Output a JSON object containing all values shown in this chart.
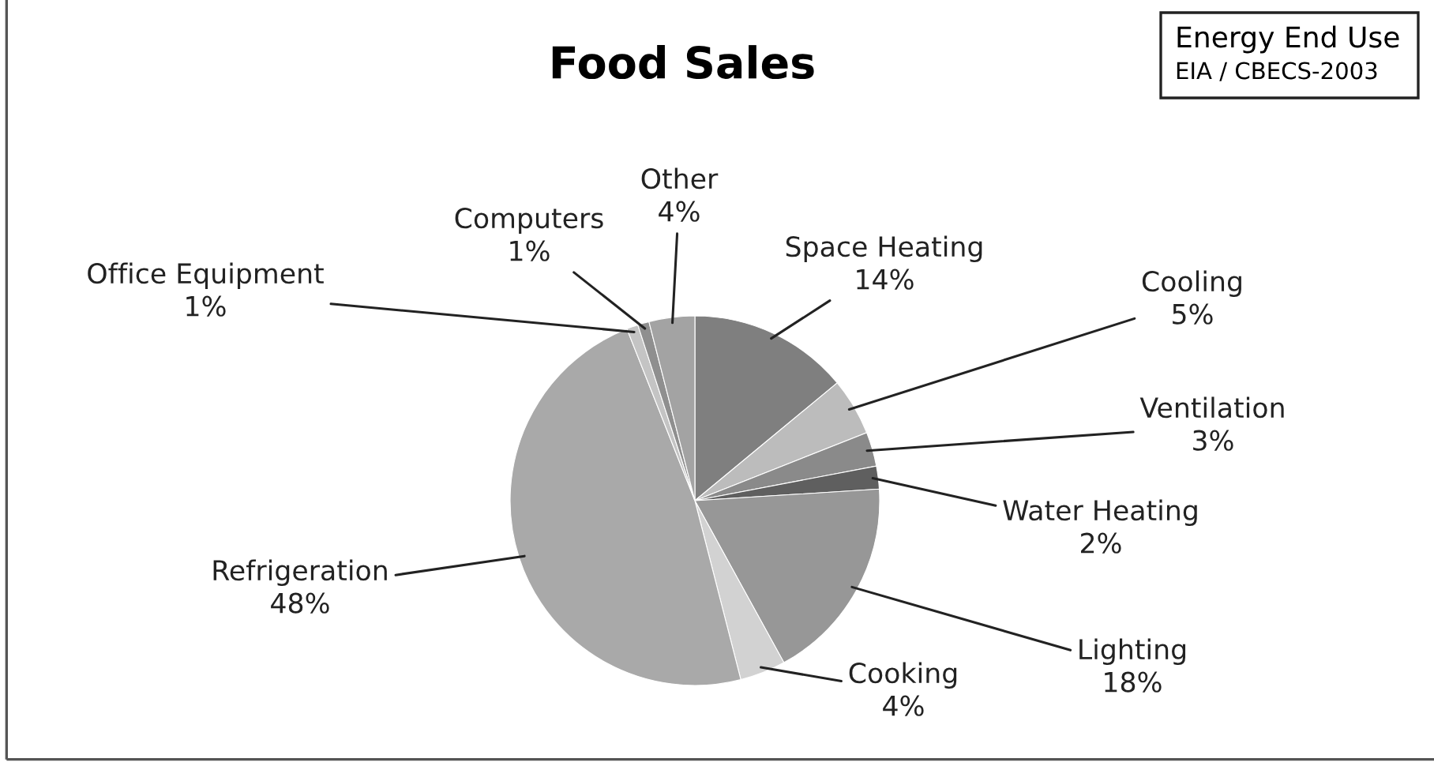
{
  "chart_data": {
    "type": "pie",
    "title": "Food Sales",
    "categories": [
      "Space Heating",
      "Cooling",
      "Ventilation",
      "Water Heating",
      "Lighting",
      "Cooking",
      "Refrigeration",
      "Office Equipment",
      "Computers",
      "Other"
    ],
    "values": [
      14,
      5,
      3,
      2,
      18,
      4,
      48,
      1,
      1,
      4
    ],
    "value_labels": [
      "14%",
      "5%",
      "3%",
      "2%",
      "18%",
      "4%",
      "48%",
      "1%",
      "1%",
      "4%"
    ],
    "colors": [
      "#7f7f7f",
      "#bcbcbc",
      "#8a8a8a",
      "#5f5f5f",
      "#979797",
      "#d2d2d2",
      "#a9a9a9",
      "#c4c4c4",
      "#8f8f8f",
      "#a3a3a3"
    ],
    "annotations": [
      "Energy End Use",
      "EIA / CBECS-2003"
    ],
    "legend": false
  }
}
